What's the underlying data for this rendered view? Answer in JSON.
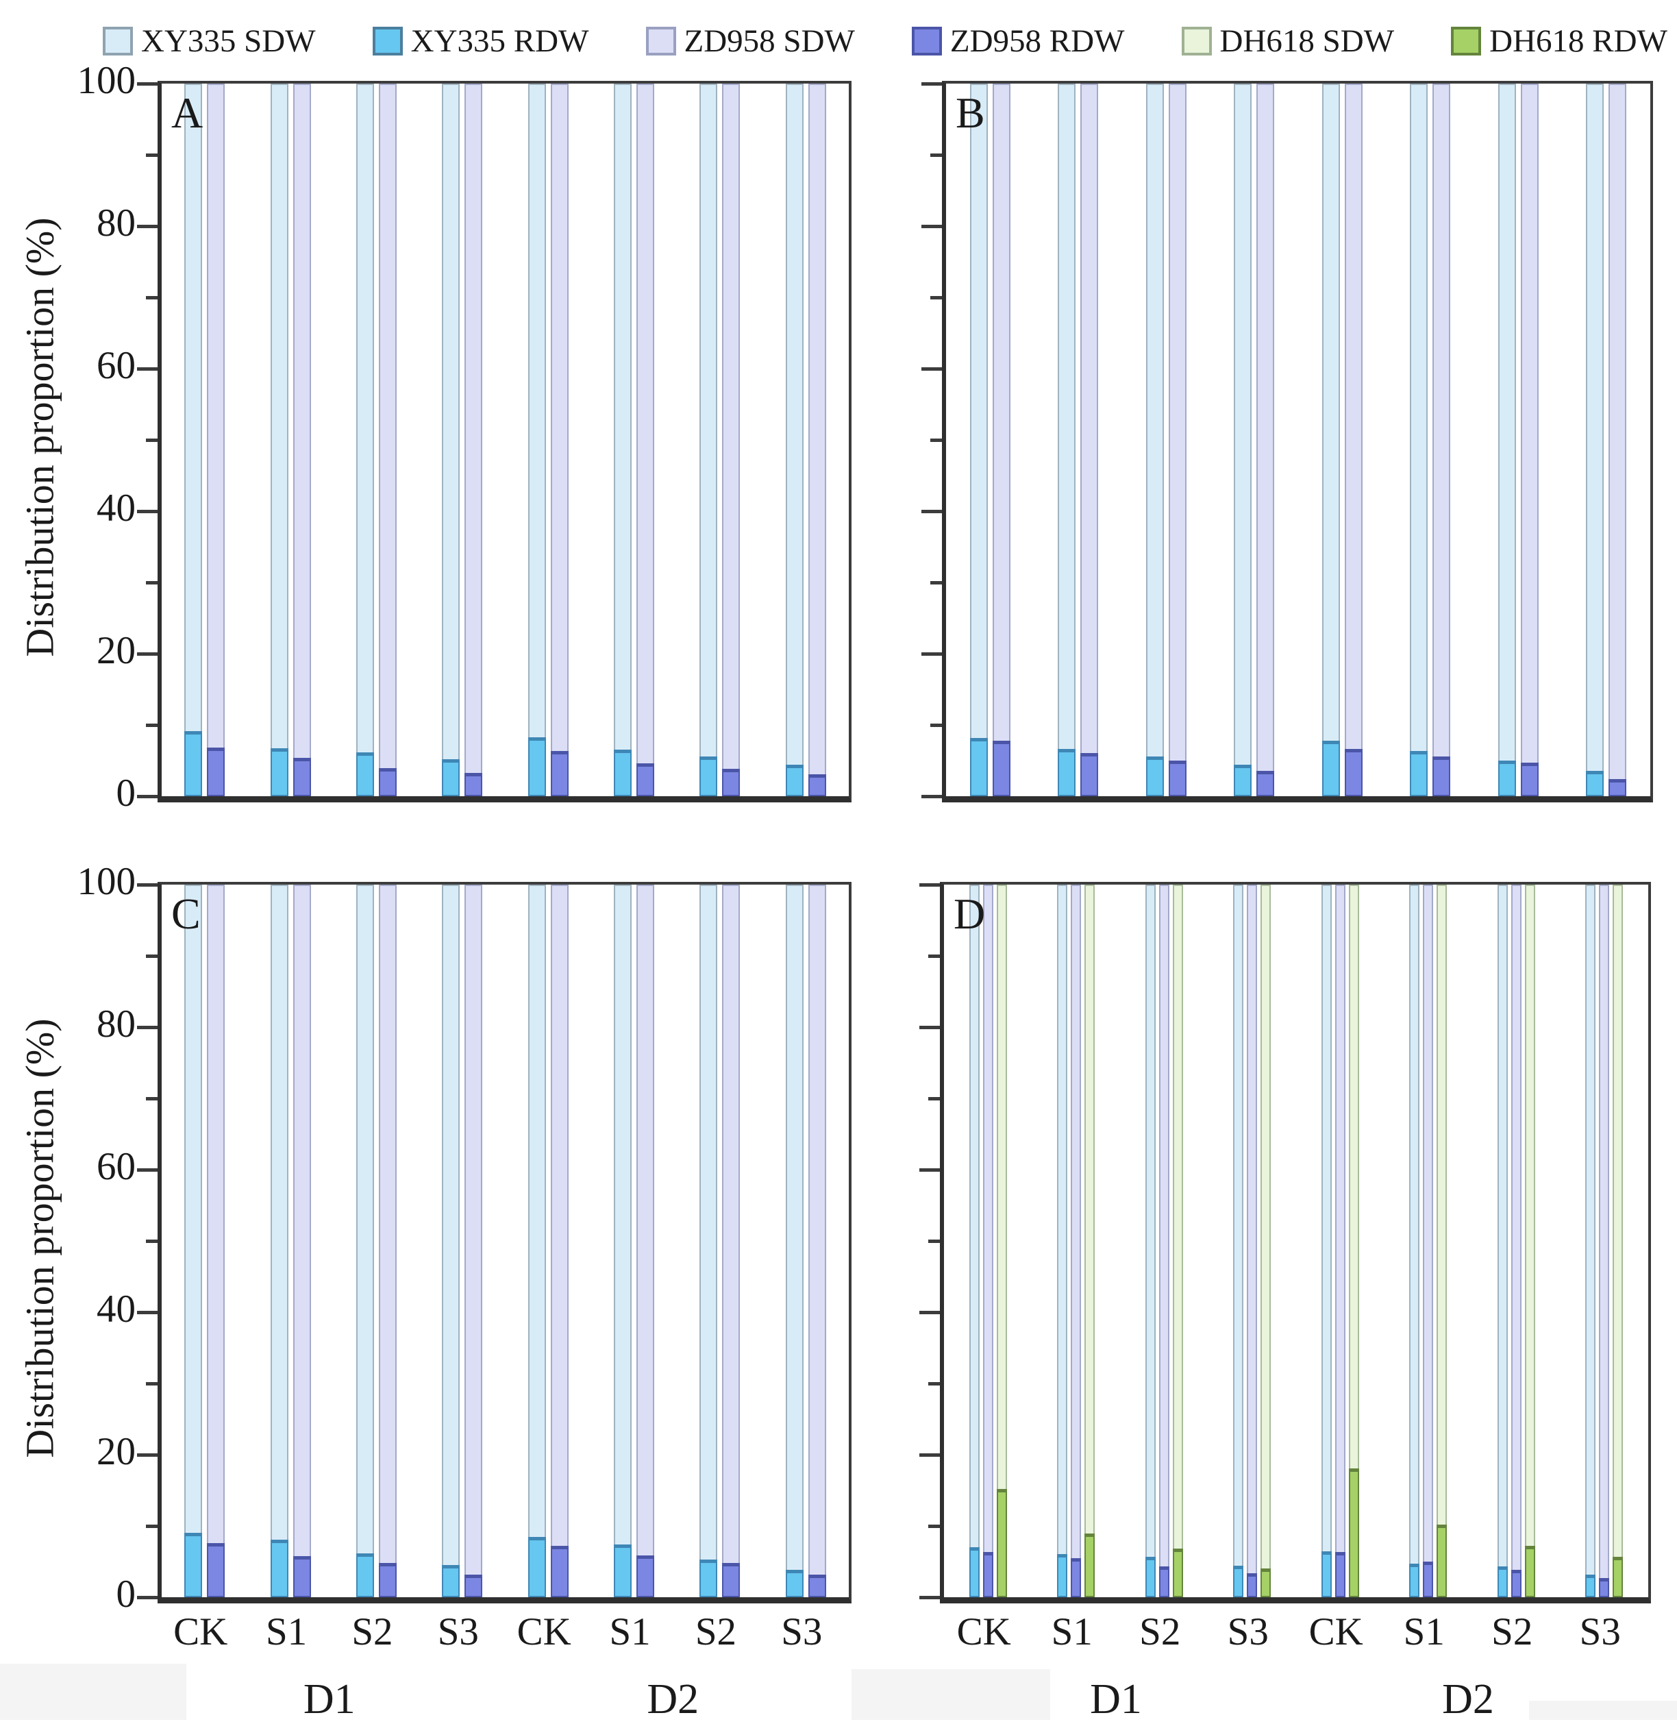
{
  "chart_data": {
    "type": "bar",
    "stacked": true,
    "percent_total": 100,
    "ylabel": "Distribution proportion (%)",
    "ylim": [
      0,
      100
    ],
    "yticks_major": [
      0,
      20,
      40,
      60,
      80,
      100
    ],
    "yticks_minor": [
      10,
      30,
      50,
      70,
      90
    ],
    "legend_position": "top",
    "group_labels": [
      "CK",
      "S1",
      "S2",
      "S3",
      "CK",
      "S1",
      "S2",
      "S3"
    ],
    "density_labels": [
      "D1",
      "D2"
    ],
    "legend": [
      {
        "label": "XY335 SDW",
        "fill": "#d8ecf8",
        "border": "#8fa3b0"
      },
      {
        "label": "XY335 RDW",
        "fill": "#66c7f0",
        "border": "#4b7f9e"
      },
      {
        "label": "ZD958 SDW",
        "fill": "#dcdef6",
        "border": "#9aa0c0"
      },
      {
        "label": "ZD958 RDW",
        "fill": "#7b87e2",
        "border": "#4b55a8"
      },
      {
        "label": "DH618 SDW",
        "fill": "#e9f4db",
        "border": "#9fb294"
      },
      {
        "label": "DH618 RDW",
        "fill": "#a5d166",
        "border": "#64843c"
      }
    ],
    "series_colors": {
      "XY335": {
        "sdw_fill": "#d8ecf8",
        "sdw_border": "#9fb2bf",
        "rdw_fill": "#66c7f0",
        "rdw_border": "#3e87b5"
      },
      "ZD958": {
        "sdw_fill": "#dcdef6",
        "sdw_border": "#a3a9c9",
        "rdw_fill": "#7b87e2",
        "rdw_border": "#4b55a8"
      },
      "DH618": {
        "sdw_fill": "#e9f4db",
        "sdw_border": "#a8bb9c",
        "rdw_fill": "#a5d166",
        "rdw_border": "#64843c"
      }
    },
    "panels": [
      {
        "label": "A",
        "series": [
          {
            "name": "XY335",
            "rdw": [
              9.2,
              6.8,
              6.2,
              5.2,
              8.3,
              6.6,
              5.6,
              4.4
            ]
          },
          {
            "name": "ZD958",
            "rdw": [
              6.9,
              5.4,
              4.0,
              3.3,
              6.4,
              4.6,
              3.9,
              3.1
            ]
          }
        ]
      },
      {
        "label": "B",
        "series": [
          {
            "name": "XY335",
            "rdw": [
              8.2,
              6.7,
              5.6,
              4.4,
              7.8,
              6.4,
              5.0,
              3.6
            ]
          },
          {
            "name": "ZD958",
            "rdw": [
              7.8,
              6.1,
              5.0,
              3.6,
              6.7,
              5.6,
              4.7,
              2.4
            ]
          }
        ]
      },
      {
        "label": "C",
        "series": [
          {
            "name": "XY335",
            "rdw": [
              9.1,
              8.1,
              6.2,
              4.5,
              8.5,
              7.4,
              5.3,
              3.9
            ]
          },
          {
            "name": "ZD958",
            "rdw": [
              7.6,
              5.8,
              4.8,
              3.2,
              7.2,
              5.9,
              4.8,
              3.2
            ]
          }
        ]
      },
      {
        "label": "D",
        "series": [
          {
            "name": "XY335",
            "rdw": [
              7.0,
              6.1,
              5.7,
              4.4,
              6.5,
              4.7,
              4.3,
              3.2
            ]
          },
          {
            "name": "ZD958",
            "rdw": [
              6.4,
              5.5,
              4.3,
              3.4,
              6.4,
              5.0,
              3.9,
              2.7
            ]
          },
          {
            "name": "DH618",
            "rdw": [
              15.3,
              9.0,
              6.9,
              4.1,
              18.1,
              10.2,
              7.2,
              5.7
            ]
          }
        ]
      }
    ]
  }
}
